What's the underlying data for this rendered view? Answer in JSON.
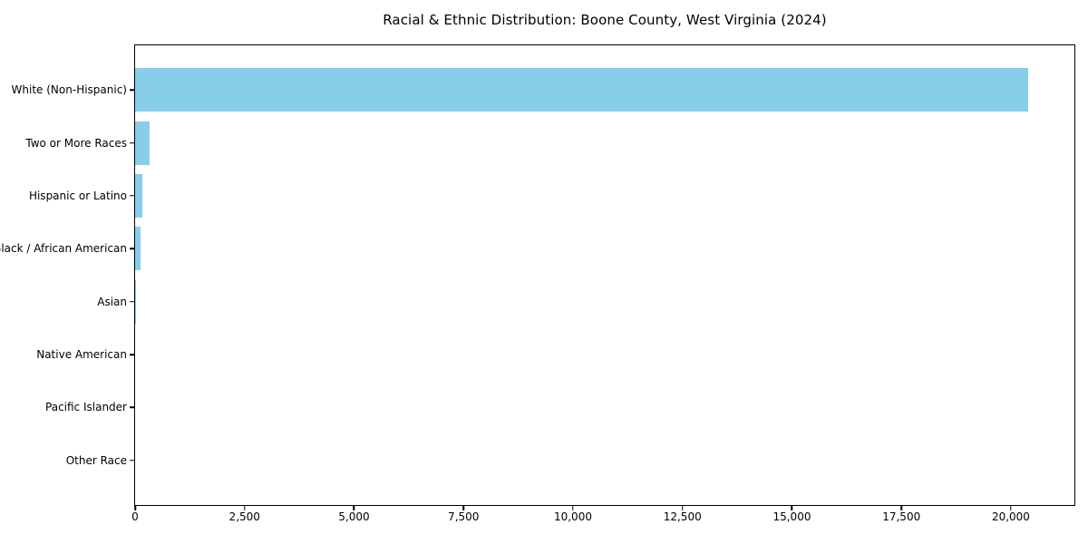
{
  "chart_data": {
    "type": "bar",
    "orientation": "horizontal",
    "title": "Racial & Ethnic Distribution: Boone County, West Virginia (2024)",
    "categories": [
      "White (Non-Hispanic)",
      "Two or More Races",
      "Hispanic or Latino",
      "Black / African American",
      "Asian",
      "Native American",
      "Pacific Islander",
      "Other Race"
    ],
    "values": [
      20400,
      340,
      170,
      120,
      30,
      0,
      0,
      0
    ],
    "xlabel": "",
    "ylabel": "",
    "xlim": [
      0,
      21450
    ],
    "x_ticks": [
      0,
      2500,
      5000,
      7500,
      10000,
      12500,
      15000,
      17500,
      20000
    ],
    "x_tick_labels": [
      "0",
      "2,500",
      "5,000",
      "7,500",
      "10,000",
      "12,500",
      "15,000",
      "17,500",
      "20,000"
    ],
    "grid": false,
    "legend": "none",
    "bar_color": "#87CEEB",
    "axis_color": "#000000",
    "background_color": "#ffffff"
  }
}
